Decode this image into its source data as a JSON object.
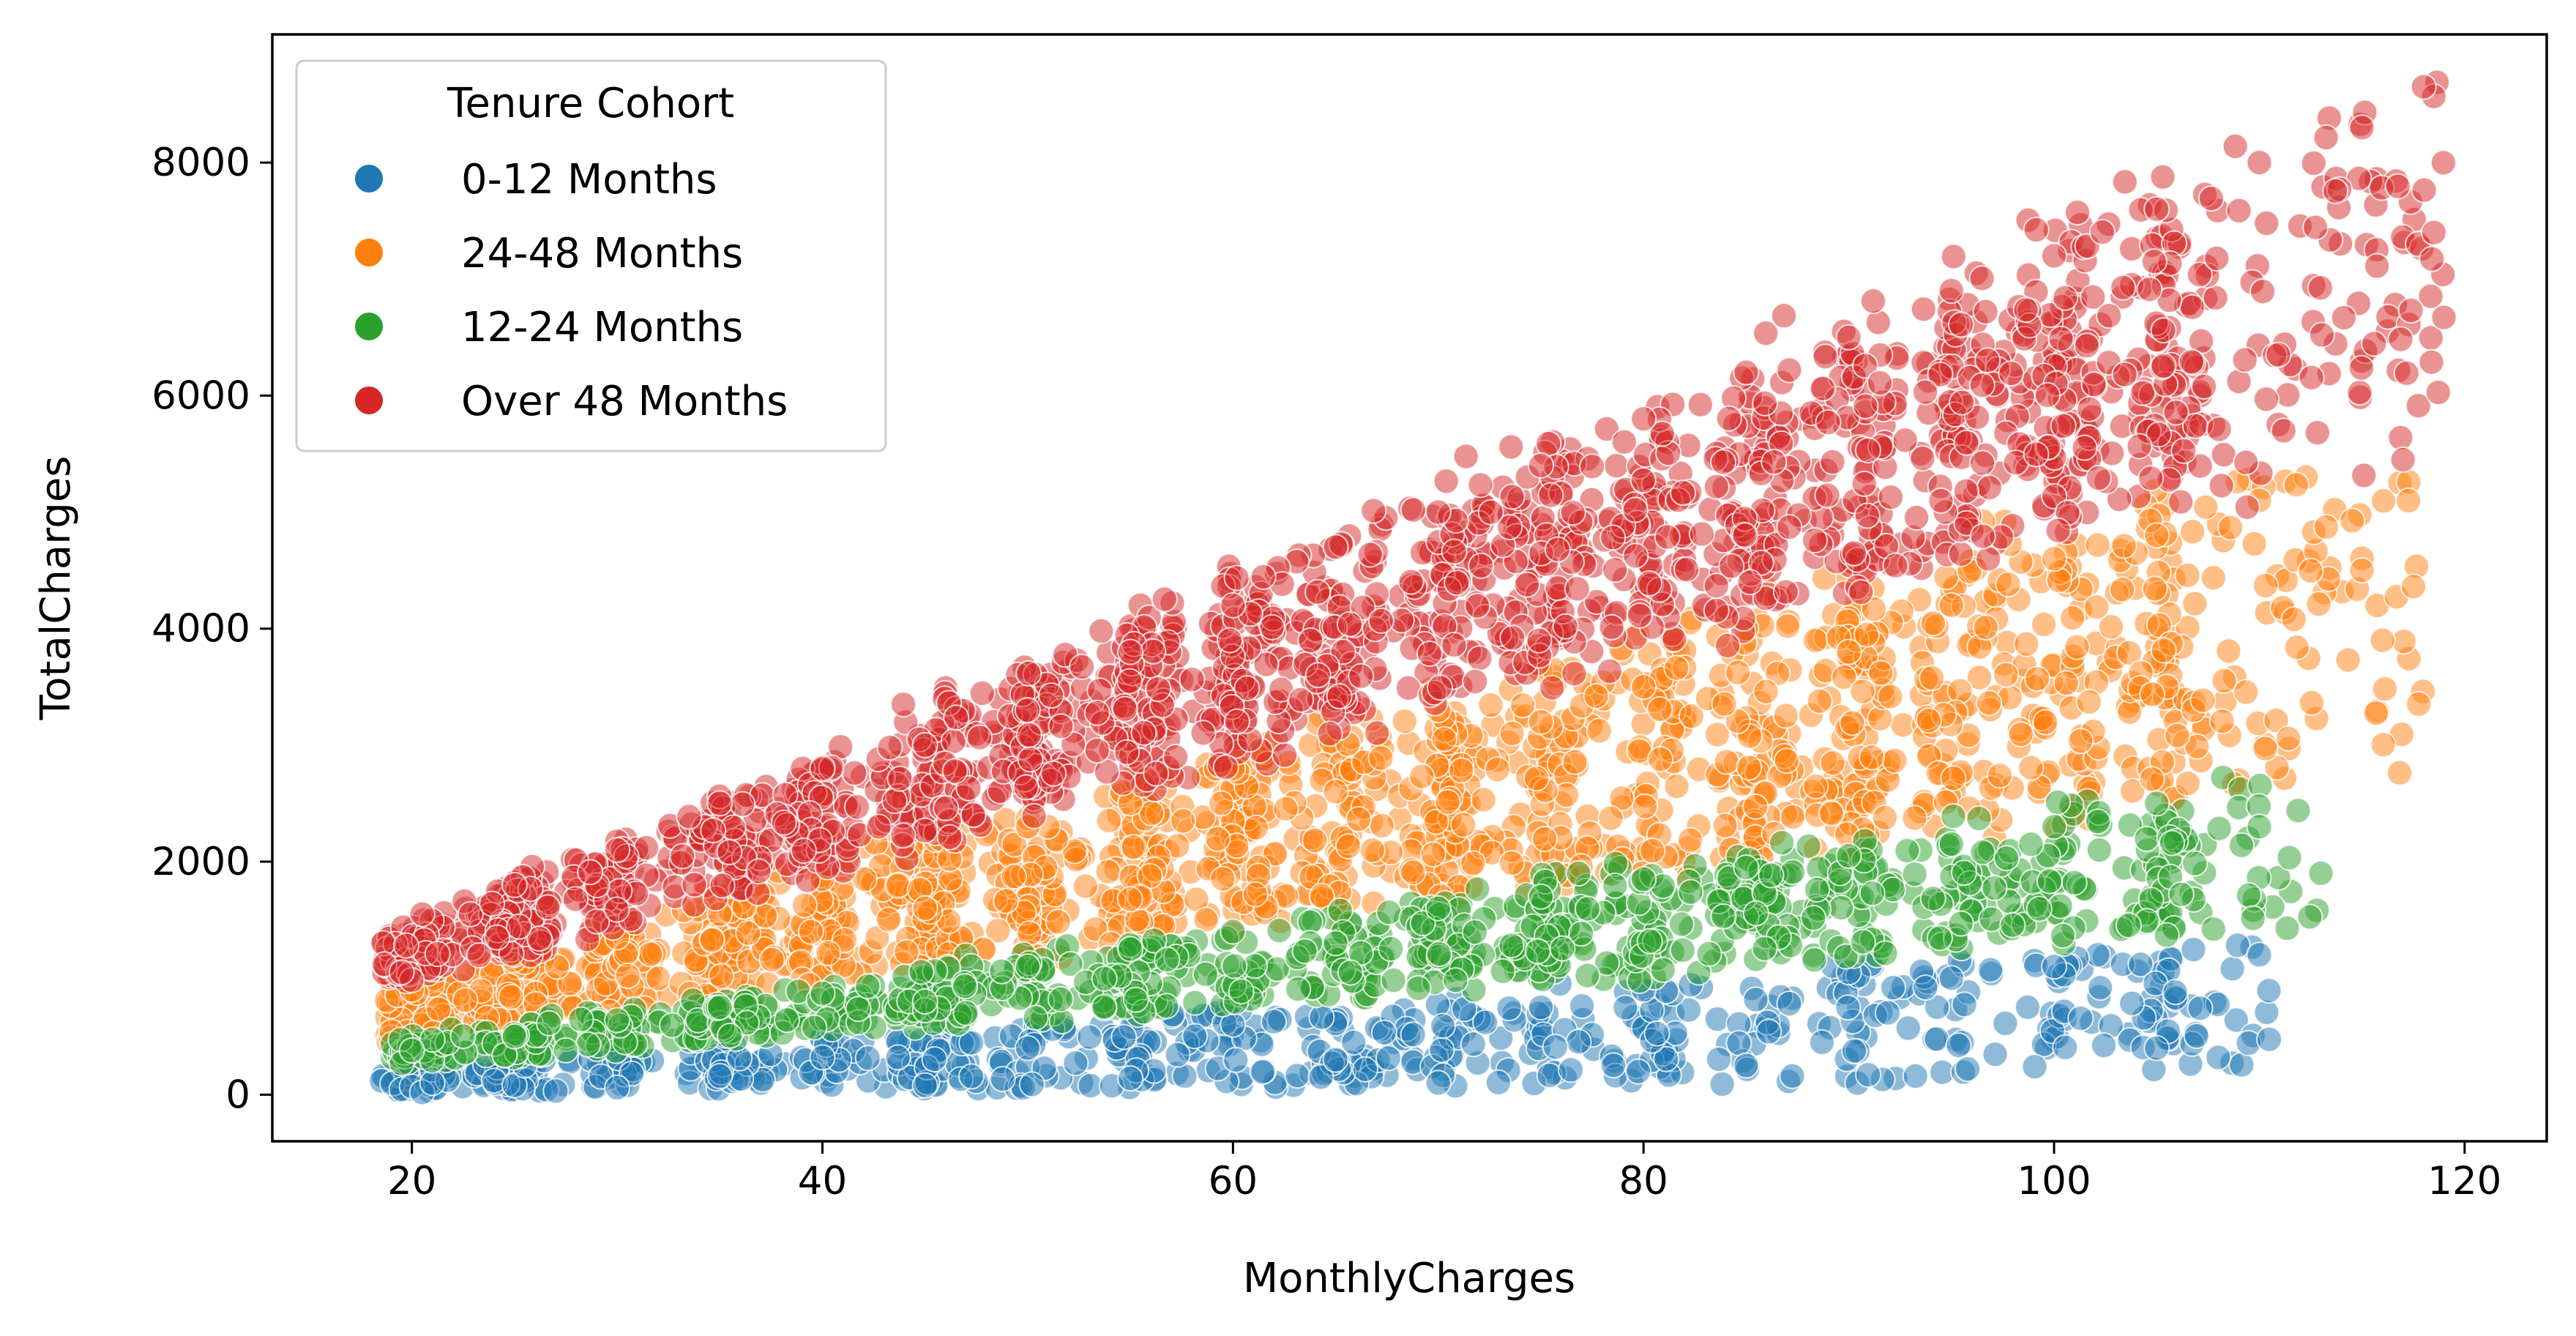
{
  "chart_data": {
    "type": "scatter",
    "title": "",
    "xlabel": "MonthlyCharges",
    "ylabel": "TotalCharges",
    "xlim": [
      13.2,
      124.0
    ],
    "ylim": [
      -400,
      9100
    ],
    "xticks": [
      20,
      40,
      60,
      80,
      100,
      120
    ],
    "yticks": [
      0,
      2000,
      4000,
      6000,
      8000
    ],
    "grid": false,
    "legend": {
      "title": "Tenure Cohort",
      "placement": "top-left"
    },
    "point_alpha": 0.5,
    "series": [
      {
        "name": "0-12 Months",
        "color": "#1f77b4",
        "tenure_min": 1,
        "tenure_max": 12,
        "count": 620,
        "x_range": [
          18.5,
          110.5
        ],
        "y_range": [
          18,
          1300
        ],
        "values": [
          [
            19.5,
            45
          ],
          [
            20.0,
            70
          ],
          [
            20.5,
            20
          ],
          [
            21.0,
            100
          ],
          [
            24.0,
            120
          ],
          [
            25.0,
            80
          ],
          [
            25.5,
            250
          ],
          [
            30.0,
            60
          ],
          [
            35.0,
            160
          ],
          [
            40.0,
            320
          ],
          [
            45.0,
            80
          ],
          [
            50.0,
            400
          ],
          [
            55.0,
            140
          ],
          [
            60.0,
            600
          ],
          [
            65.0,
            300
          ],
          [
            70.0,
            100
          ],
          [
            75.0,
            750
          ],
          [
            80.0,
            900
          ],
          [
            85.0,
            250
          ],
          [
            90.0,
            1050
          ],
          [
            95.0,
            1000
          ],
          [
            100.0,
            1100
          ],
          [
            105.0,
            400
          ],
          [
            108.0,
            320
          ],
          [
            110.0,
            1200
          ]
        ]
      },
      {
        "name": "24-48 Months",
        "color": "#ff7f0e",
        "tenure_min": 24,
        "tenure_max": 48,
        "count": 1590,
        "x_range": [
          18.5,
          118.0
        ],
        "y_range": [
          430,
          5300
        ],
        "values": [
          [
            19.0,
            540
          ],
          [
            20.0,
            900
          ],
          [
            25.0,
            1200
          ],
          [
            30.0,
            1350
          ],
          [
            35.0,
            1550
          ],
          [
            40.0,
            1850
          ],
          [
            45.0,
            1600
          ],
          [
            50.0,
            2300
          ],
          [
            55.0,
            2500
          ],
          [
            60.0,
            2800
          ],
          [
            65.0,
            2600
          ],
          [
            70.0,
            3300
          ],
          [
            75.0,
            3200
          ],
          [
            80.0,
            3500
          ],
          [
            85.0,
            4000
          ],
          [
            90.0,
            3800
          ],
          [
            95.0,
            4200
          ],
          [
            100.0,
            4600
          ],
          [
            105.0,
            4800
          ],
          [
            110.0,
            5100
          ],
          [
            115.0,
            4500
          ],
          [
            116.0,
            3900
          ]
        ]
      },
      {
        "name": "12-24 Months",
        "color": "#2ca02c",
        "tenure_min": 13,
        "tenure_max": 24,
        "count": 930,
        "x_range": [
          19.0,
          113.0
        ],
        "y_range": [
          230,
          2750
        ],
        "values": [
          [
            19.5,
            270
          ],
          [
            20.0,
            380
          ],
          [
            25.0,
            500
          ],
          [
            30.0,
            640
          ],
          [
            35.0,
            750
          ],
          [
            40.0,
            870
          ],
          [
            45.0,
            800
          ],
          [
            50.0,
            1100
          ],
          [
            55.0,
            1250
          ],
          [
            60.0,
            1400
          ],
          [
            65.0,
            1300
          ],
          [
            70.0,
            1600
          ],
          [
            75.0,
            1700
          ],
          [
            80.0,
            1850
          ],
          [
            85.0,
            1950
          ],
          [
            90.0,
            2050
          ],
          [
            95.0,
            2150
          ],
          [
            100.0,
            2300
          ],
          [
            105.0,
            2500
          ],
          [
            110.0,
            2300
          ],
          [
            113.0,
            1900
          ]
        ]
      },
      {
        "name": "Over 48 Months",
        "color": "#d62728",
        "tenure_min": 49,
        "tenure_max": 72,
        "count": 1900,
        "x_range": [
          18.5,
          119.0
        ],
        "y_range": [
          860,
          8700
        ],
        "values": [
          [
            19.5,
            1050
          ],
          [
            20.5,
            1550
          ],
          [
            25.0,
            1800
          ],
          [
            30.0,
            2100
          ],
          [
            35.0,
            2500
          ],
          [
            40.0,
            2800
          ],
          [
            45.0,
            3000
          ],
          [
            50.0,
            3300
          ],
          [
            55.0,
            3800
          ],
          [
            60.0,
            4200
          ],
          [
            65.0,
            4700
          ],
          [
            70.0,
            5000
          ],
          [
            75.0,
            5400
          ],
          [
            80.0,
            5800
          ],
          [
            85.0,
            6200
          ],
          [
            90.0,
            6500
          ],
          [
            95.0,
            6900
          ],
          [
            100.0,
            7200
          ],
          [
            105.0,
            7600
          ],
          [
            110.0,
            8000
          ],
          [
            115.0,
            8300
          ],
          [
            118.0,
            8650
          ],
          [
            118.5,
            7400
          ],
          [
            117.0,
            5450
          ]
        ]
      }
    ]
  }
}
